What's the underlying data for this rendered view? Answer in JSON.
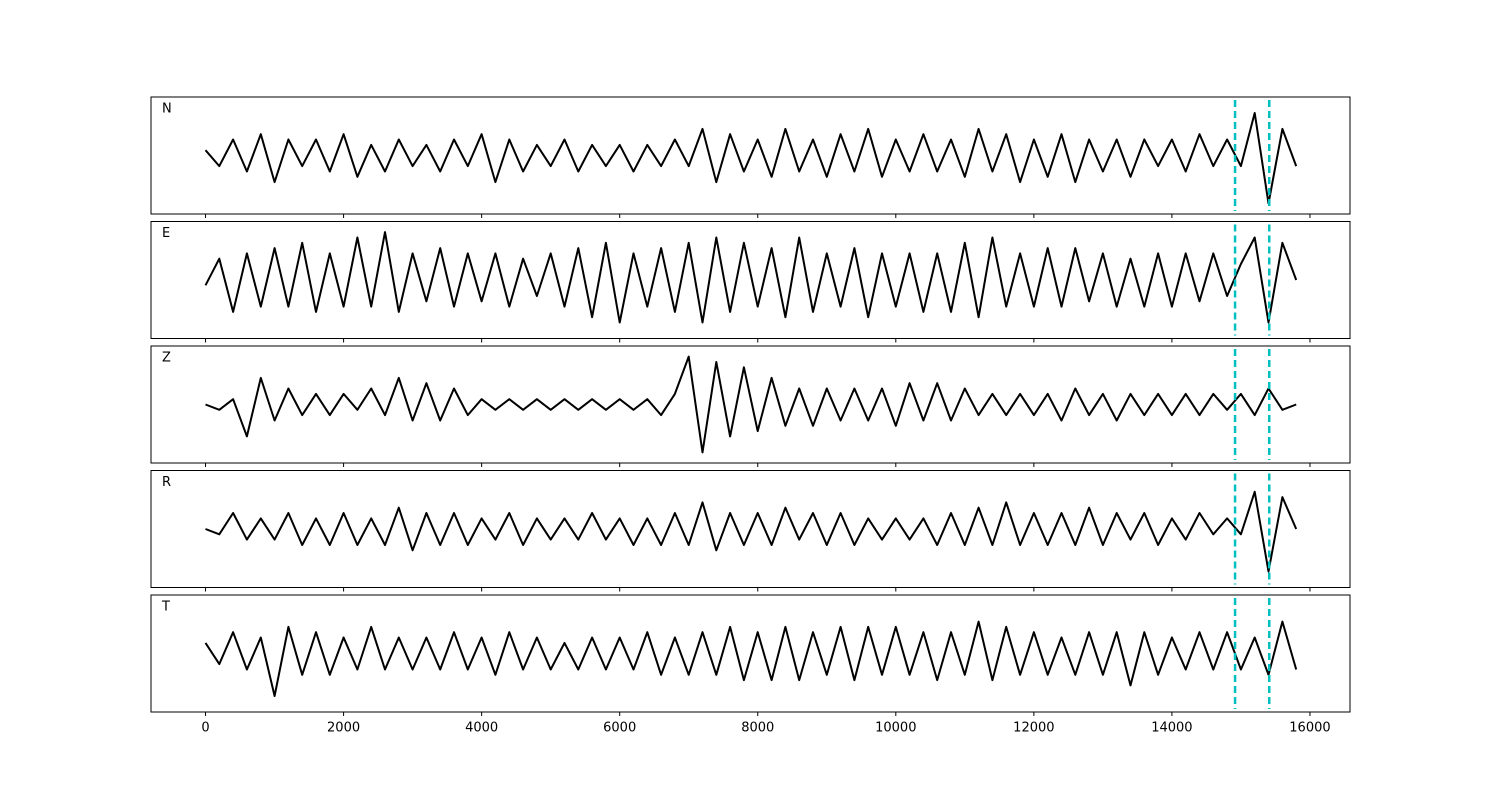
{
  "chart_data": [
    {
      "type": "line",
      "label": "N",
      "color": "#000000",
      "xlim": [
        -790,
        16580
      ],
      "ylim": [
        -1.1,
        1.1
      ],
      "vlines": [
        14915,
        15410
      ],
      "vline_color": "#00bfbf",
      "x": [
        0,
        200,
        400,
        600,
        800,
        1000,
        1200,
        1400,
        1600,
        1800,
        2000,
        2200,
        2400,
        2600,
        2800,
        3000,
        3200,
        3400,
        3600,
        3800,
        4000,
        4200,
        4400,
        4600,
        4800,
        5000,
        5200,
        5400,
        5600,
        5800,
        6000,
        6200,
        6400,
        6600,
        6800,
        7000,
        7200,
        7400,
        7600,
        7800,
        8000,
        8200,
        8400,
        8600,
        8800,
        9000,
        9200,
        9400,
        9600,
        9800,
        10000,
        10200,
        10400,
        10600,
        10800,
        11000,
        11200,
        11400,
        11600,
        11800,
        12000,
        12200,
        12400,
        12600,
        12800,
        13000,
        13200,
        13400,
        13600,
        13800,
        14000,
        14200,
        14400,
        14600,
        14800,
        15000,
        15200,
        15400,
        15600,
        15800
      ],
      "values": [
        0.1,
        -0.2,
        0.3,
        -0.3,
        0.4,
        -0.5,
        0.3,
        -0.2,
        0.3,
        -0.3,
        0.4,
        -0.4,
        0.2,
        -0.3,
        0.3,
        -0.2,
        0.2,
        -0.3,
        0.3,
        -0.2,
        0.4,
        -0.5,
        0.3,
        -0.3,
        0.2,
        -0.2,
        0.3,
        -0.3,
        0.2,
        -0.2,
        0.2,
        -0.3,
        0.2,
        -0.2,
        0.3,
        -0.2,
        0.5,
        -0.5,
        0.4,
        -0.3,
        0.3,
        -0.4,
        0.5,
        -0.3,
        0.3,
        -0.4,
        0.4,
        -0.3,
        0.5,
        -0.4,
        0.3,
        -0.3,
        0.4,
        -0.3,
        0.3,
        -0.4,
        0.5,
        -0.3,
        0.4,
        -0.5,
        0.3,
        -0.4,
        0.4,
        -0.5,
        0.3,
        -0.3,
        0.3,
        -0.4,
        0.3,
        -0.2,
        0.3,
        -0.3,
        0.4,
        -0.2,
        0.3,
        -0.2,
        0.8,
        -0.9,
        0.5,
        -0.2
      ]
    },
    {
      "type": "line",
      "label": "E",
      "color": "#000000",
      "xlim": [
        -790,
        16580
      ],
      "ylim": [
        -1.1,
        1.1
      ],
      "vlines": [
        14915,
        15410
      ],
      "vline_color": "#00bfbf",
      "x": [
        0,
        200,
        400,
        600,
        800,
        1000,
        1200,
        1400,
        1600,
        1800,
        2000,
        2200,
        2400,
        2600,
        2800,
        3000,
        3200,
        3400,
        3600,
        3800,
        4000,
        4200,
        4400,
        4600,
        4800,
        5000,
        5200,
        5400,
        5600,
        5800,
        6000,
        6200,
        6400,
        6600,
        6800,
        7000,
        7200,
        7400,
        7600,
        7800,
        8000,
        8200,
        8400,
        8600,
        8800,
        9000,
        9200,
        9400,
        9600,
        9800,
        10000,
        10200,
        10400,
        10600,
        10800,
        11000,
        11200,
        11400,
        11600,
        11800,
        12000,
        12200,
        12400,
        12600,
        12800,
        13000,
        13200,
        13400,
        13600,
        13800,
        14000,
        14200,
        14400,
        14600,
        14800,
        15000,
        15200,
        15400,
        15600,
        15800
      ],
      "values": [
        -0.1,
        0.4,
        -0.6,
        0.5,
        -0.5,
        0.6,
        -0.5,
        0.7,
        -0.6,
        0.5,
        -0.5,
        0.8,
        -0.5,
        0.9,
        -0.6,
        0.5,
        -0.4,
        0.6,
        -0.5,
        0.5,
        -0.4,
        0.5,
        -0.5,
        0.4,
        -0.3,
        0.5,
        -0.5,
        0.6,
        -0.7,
        0.7,
        -0.8,
        0.5,
        -0.5,
        0.6,
        -0.6,
        0.7,
        -0.8,
        0.8,
        -0.6,
        0.7,
        -0.5,
        0.6,
        -0.7,
        0.8,
        -0.6,
        0.5,
        -0.5,
        0.6,
        -0.7,
        0.5,
        -0.5,
        0.5,
        -0.6,
        0.5,
        -0.6,
        0.7,
        -0.7,
        0.8,
        -0.5,
        0.5,
        -0.5,
        0.6,
        -0.5,
        0.6,
        -0.4,
        0.5,
        -0.5,
        0.4,
        -0.5,
        0.5,
        -0.5,
        0.5,
        -0.4,
        0.5,
        -0.3,
        0.3,
        0.8,
        -0.8,
        0.7,
        0.0
      ]
    },
    {
      "type": "line",
      "label": "Z",
      "color": "#000000",
      "xlim": [
        -790,
        16580
      ],
      "ylim": [
        -1.1,
        1.1
      ],
      "vlines": [
        14915,
        15410
      ],
      "vline_color": "#00bfbf",
      "x": [
        0,
        200,
        400,
        600,
        800,
        1000,
        1200,
        1400,
        1600,
        1800,
        2000,
        2200,
        2400,
        2600,
        2800,
        3000,
        3200,
        3400,
        3600,
        3800,
        4000,
        4200,
        4400,
        4600,
        4800,
        5000,
        5200,
        5400,
        5600,
        5800,
        6000,
        6200,
        6400,
        6600,
        6800,
        7000,
        7200,
        7400,
        7600,
        7800,
        8000,
        8200,
        8400,
        8600,
        8800,
        9000,
        9200,
        9400,
        9600,
        9800,
        10000,
        10200,
        10400,
        10600,
        10800,
        11000,
        11200,
        11400,
        11600,
        11800,
        12000,
        12200,
        12400,
        12600,
        12800,
        13000,
        13200,
        13400,
        13600,
        13800,
        14000,
        14200,
        14400,
        14600,
        14800,
        15000,
        15200,
        15400,
        15600,
        15800
      ],
      "values": [
        0.0,
        -0.1,
        0.1,
        -0.6,
        0.5,
        -0.3,
        0.3,
        -0.2,
        0.2,
        -0.2,
        0.2,
        -0.1,
        0.3,
        -0.2,
        0.5,
        -0.3,
        0.4,
        -0.3,
        0.3,
        -0.2,
        0.1,
        -0.1,
        0.1,
        -0.1,
        0.1,
        -0.1,
        0.1,
        -0.1,
        0.1,
        -0.1,
        0.1,
        -0.1,
        0.1,
        -0.2,
        0.2,
        0.9,
        -0.9,
        0.8,
        -0.6,
        0.7,
        -0.5,
        0.5,
        -0.4,
        0.3,
        -0.4,
        0.3,
        -0.3,
        0.3,
        -0.3,
        0.3,
        -0.4,
        0.4,
        -0.3,
        0.4,
        -0.3,
        0.3,
        -0.2,
        0.2,
        -0.2,
        0.2,
        -0.2,
        0.2,
        -0.3,
        0.3,
        -0.2,
        0.2,
        -0.3,
        0.2,
        -0.2,
        0.2,
        -0.2,
        0.2,
        -0.2,
        0.2,
        -0.1,
        0.2,
        -0.2,
        0.3,
        -0.1,
        0.0
      ]
    },
    {
      "type": "line",
      "label": "R",
      "color": "#000000",
      "xlim": [
        -790,
        16580
      ],
      "ylim": [
        -1.1,
        1.1
      ],
      "vlines": [
        14915,
        15410
      ],
      "vline_color": "#00bfbf",
      "x": [
        0,
        200,
        400,
        600,
        800,
        1000,
        1200,
        1400,
        1600,
        1800,
        2000,
        2200,
        2400,
        2600,
        2800,
        3000,
        3200,
        3400,
        3600,
        3800,
        4000,
        4200,
        4400,
        4600,
        4800,
        5000,
        5200,
        5400,
        5600,
        5800,
        6000,
        6200,
        6400,
        6600,
        6800,
        7000,
        7200,
        7400,
        7600,
        7800,
        8000,
        8200,
        8400,
        8600,
        8800,
        9000,
        9200,
        9400,
        9600,
        9800,
        10000,
        10200,
        10400,
        10600,
        10800,
        11000,
        11200,
        11400,
        11600,
        11800,
        12000,
        12200,
        12400,
        12600,
        12800,
        13000,
        13200,
        13400,
        13600,
        13800,
        14000,
        14200,
        14400,
        14600,
        14800,
        15000,
        15200,
        15400,
        15600,
        15800
      ],
      "values": [
        0.0,
        -0.1,
        0.3,
        -0.2,
        0.2,
        -0.2,
        0.3,
        -0.3,
        0.2,
        -0.3,
        0.3,
        -0.3,
        0.2,
        -0.3,
        0.4,
        -0.4,
        0.3,
        -0.3,
        0.3,
        -0.3,
        0.2,
        -0.2,
        0.3,
        -0.3,
        0.2,
        -0.2,
        0.2,
        -0.2,
        0.3,
        -0.2,
        0.2,
        -0.3,
        0.2,
        -0.3,
        0.3,
        -0.3,
        0.5,
        -0.4,
        0.3,
        -0.3,
        0.3,
        -0.3,
        0.4,
        -0.2,
        0.3,
        -0.3,
        0.3,
        -0.3,
        0.2,
        -0.2,
        0.2,
        -0.2,
        0.2,
        -0.3,
        0.3,
        -0.3,
        0.4,
        -0.3,
        0.5,
        -0.3,
        0.3,
        -0.3,
        0.3,
        -0.3,
        0.4,
        -0.3,
        0.3,
        -0.2,
        0.3,
        -0.3,
        0.2,
        -0.2,
        0.3,
        -0.1,
        0.2,
        -0.1,
        0.7,
        -0.8,
        0.6,
        0.0
      ]
    },
    {
      "type": "line",
      "label": "T",
      "color": "#000000",
      "xlim": [
        -790,
        16580
      ],
      "ylim": [
        -1.1,
        1.1
      ],
      "vlines": [
        14915,
        15410
      ],
      "vline_color": "#00bfbf",
      "xticks": [
        0,
        2000,
        4000,
        6000,
        8000,
        10000,
        12000,
        14000,
        16000
      ],
      "x": [
        0,
        200,
        400,
        600,
        800,
        1000,
        1200,
        1400,
        1600,
        1800,
        2000,
        2200,
        2400,
        2600,
        2800,
        3000,
        3200,
        3400,
        3600,
        3800,
        4000,
        4200,
        4400,
        4600,
        4800,
        5000,
        5200,
        5400,
        5600,
        5800,
        6000,
        6200,
        6400,
        6600,
        6800,
        7000,
        7200,
        7400,
        7600,
        7800,
        8000,
        8200,
        8400,
        8600,
        8800,
        9000,
        9200,
        9400,
        9600,
        9800,
        10000,
        10200,
        10400,
        10600,
        10800,
        11000,
        11200,
        11400,
        11600,
        11800,
        12000,
        12200,
        12400,
        12600,
        12800,
        13000,
        13200,
        13400,
        13600,
        13800,
        14000,
        14200,
        14400,
        14600,
        14800,
        15000,
        15200,
        15400,
        15600,
        15800
      ],
      "values": [
        0.2,
        -0.2,
        0.4,
        -0.3,
        0.3,
        -0.8,
        0.5,
        -0.4,
        0.4,
        -0.4,
        0.3,
        -0.3,
        0.5,
        -0.3,
        0.3,
        -0.3,
        0.3,
        -0.3,
        0.4,
        -0.3,
        0.3,
        -0.4,
        0.4,
        -0.3,
        0.3,
        -0.3,
        0.2,
        -0.3,
        0.3,
        -0.3,
        0.3,
        -0.3,
        0.4,
        -0.4,
        0.3,
        -0.4,
        0.4,
        -0.4,
        0.5,
        -0.5,
        0.4,
        -0.5,
        0.5,
        -0.5,
        0.4,
        -0.4,
        0.5,
        -0.5,
        0.5,
        -0.4,
        0.5,
        -0.4,
        0.4,
        -0.5,
        0.4,
        -0.4,
        0.6,
        -0.5,
        0.5,
        -0.4,
        0.4,
        -0.4,
        0.3,
        -0.4,
        0.4,
        -0.4,
        0.4,
        -0.6,
        0.4,
        -0.4,
        0.3,
        -0.3,
        0.4,
        -0.3,
        0.4,
        -0.3,
        0.3,
        -0.4,
        0.6,
        -0.3
      ]
    }
  ]
}
